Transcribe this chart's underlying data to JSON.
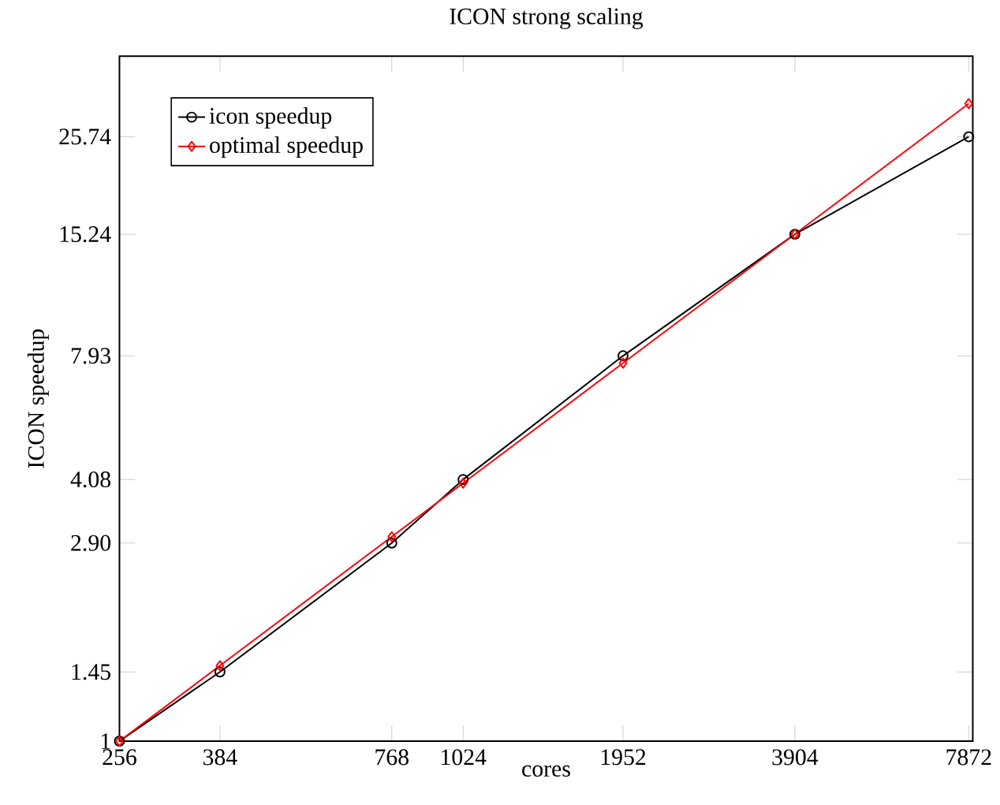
{
  "chart_data": {
    "type": "line",
    "title": "ICON strong scaling",
    "xlabel": "cores",
    "ylabel": "ICON speedup",
    "log": "xy",
    "x": [
      256,
      384,
      768,
      1024,
      1952,
      3904,
      7872
    ],
    "xlim": [
      256,
      8000
    ],
    "xticks": [
      256,
      384,
      768,
      1024,
      1952,
      3904,
      7872
    ],
    "ylim": [
      1,
      39.7
    ],
    "yticks": [
      1,
      1.45,
      {
        "value": 2.9,
        "label": "2.90"
      },
      4.08,
      7.93,
      15.24,
      25.74
    ],
    "series": [
      {
        "name": "icon speedup",
        "color": "#000000",
        "marker": "circle",
        "values": [
          1,
          1.45,
          2.9,
          4.08,
          7.93,
          15.24,
          25.74
        ]
      },
      {
        "name": "optimal speedup",
        "color": "#ff0000",
        "marker": "diamond",
        "values": [
          1,
          1.5,
          3,
          4,
          7.625,
          15.25,
          30.75
        ]
      }
    ],
    "legend": "top left",
    "grid": false
  }
}
